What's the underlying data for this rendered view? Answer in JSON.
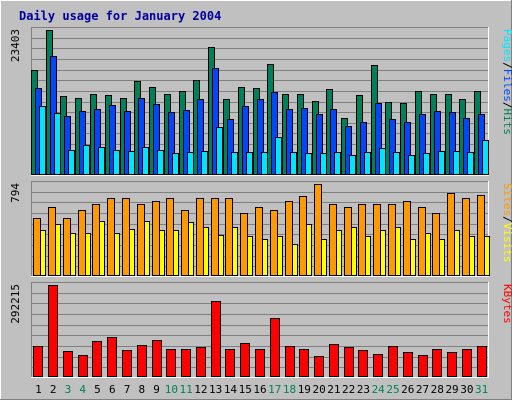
{
  "chart_data": [
    {
      "type": "bar",
      "title": "Daily usage for January 2004",
      "categories": [
        "1",
        "2",
        "3",
        "4",
        "5",
        "6",
        "7",
        "8",
        "9",
        "10",
        "11",
        "12",
        "13",
        "14",
        "15",
        "16",
        "17",
        "18",
        "19",
        "20",
        "21",
        "22",
        "23",
        "24",
        "25",
        "26",
        "27",
        "28",
        "29",
        "30",
        "31"
      ],
      "weekend_days": [
        "3",
        "4",
        "10",
        "11",
        "17",
        "18",
        "24",
        "25",
        "31"
      ],
      "ylabel_max": "23403",
      "ylim": [
        0,
        23403
      ],
      "legend": [
        "Pages",
        "/",
        "Files",
        "/",
        "Hits"
      ],
      "series": [
        {
          "name": "Hits",
          "color": "#00805a",
          "values": [
            16900,
            23403,
            12800,
            12500,
            13100,
            12900,
            12500,
            15200,
            14200,
            13000,
            13600,
            15400,
            20700,
            12300,
            14200,
            14000,
            17900,
            13100,
            13100,
            11900,
            13800,
            9200,
            12900,
            17800,
            11800,
            11700,
            13500,
            13000,
            13000,
            12300,
            13500
          ]
        },
        {
          "name": "Files",
          "color": "#0047ff",
          "values": [
            14100,
            19200,
            9500,
            10300,
            10700,
            11300,
            10300,
            12500,
            11500,
            10200,
            10500,
            12200,
            17300,
            9100,
            11200,
            12300,
            13400,
            10600,
            10800,
            9800,
            10600,
            7900,
            8600,
            11700,
            9100,
            8500,
            9900,
            10300,
            10200,
            9200,
            9900
          ]
        },
        {
          "name": "Pages",
          "color": "#00e5ff",
          "values": [
            11100,
            10000,
            4000,
            4800,
            4500,
            4000,
            3800,
            4500,
            4100,
            3500,
            3700,
            3800,
            7800,
            3700,
            3700,
            3700,
            6100,
            3700,
            3500,
            3500,
            3700,
            3300,
            3700,
            4300,
            3700,
            3300,
            3600,
            3900,
            3900,
            3700,
            5700
          ]
        }
      ]
    },
    {
      "type": "bar",
      "categories": [
        "1",
        "2",
        "3",
        "4",
        "5",
        "6",
        "7",
        "8",
        "9",
        "10",
        "11",
        "12",
        "13",
        "14",
        "15",
        "16",
        "17",
        "18",
        "19",
        "20",
        "21",
        "22",
        "23",
        "24",
        "25",
        "26",
        "27",
        "28",
        "29",
        "30",
        "31"
      ],
      "ylabel_max": "794",
      "ylim": [
        0,
        794
      ],
      "legend": [
        "Sites",
        "/",
        "Visits"
      ],
      "series": [
        {
          "name": "Visits",
          "color": "#ffff00",
          "values": [
            398,
            448,
            373,
            374,
            473,
            373,
            408,
            473,
            397,
            398,
            463,
            423,
            356,
            423,
            348,
            323,
            348,
            273,
            448,
            323,
            398,
            423,
            348,
            398,
            423,
            323,
            373,
            318,
            398,
            348,
            348
          ]
        },
        {
          "name": "Sites",
          "color": "#ff9900",
          "values": [
            498,
            598,
            498,
            573,
            623,
            673,
            673,
            623,
            648,
            673,
            573,
            673,
            673,
            673,
            548,
            598,
            573,
            648,
            694,
            794,
            623,
            598,
            623,
            623,
            623,
            648,
            598,
            548,
            718,
            673,
            698
          ]
        }
      ]
    },
    {
      "type": "bar",
      "categories": [
        "1",
        "2",
        "3",
        "4",
        "5",
        "6",
        "7",
        "8",
        "9",
        "10",
        "11",
        "12",
        "13",
        "14",
        "15",
        "16",
        "17",
        "18",
        "19",
        "20",
        "21",
        "22",
        "23",
        "24",
        "25",
        "26",
        "27",
        "28",
        "29",
        "30",
        "31"
      ],
      "ylabel_max": "292215",
      "ylim": [
        0,
        292215
      ],
      "legend": [
        "KBytes"
      ],
      "series": [
        {
          "name": "KBytes",
          "color": "#ff0000",
          "values": [
            97000,
            292215,
            83000,
            71000,
            113000,
            128000,
            85000,
            103000,
            118000,
            88000,
            88000,
            94000,
            240000,
            88000,
            109000,
            88000,
            188000,
            100000,
            88000,
            68000,
            105000,
            94000,
            85000,
            74000,
            100000,
            79000,
            71000,
            88000,
            79000,
            88000,
            97000
          ]
        }
      ]
    }
  ]
}
